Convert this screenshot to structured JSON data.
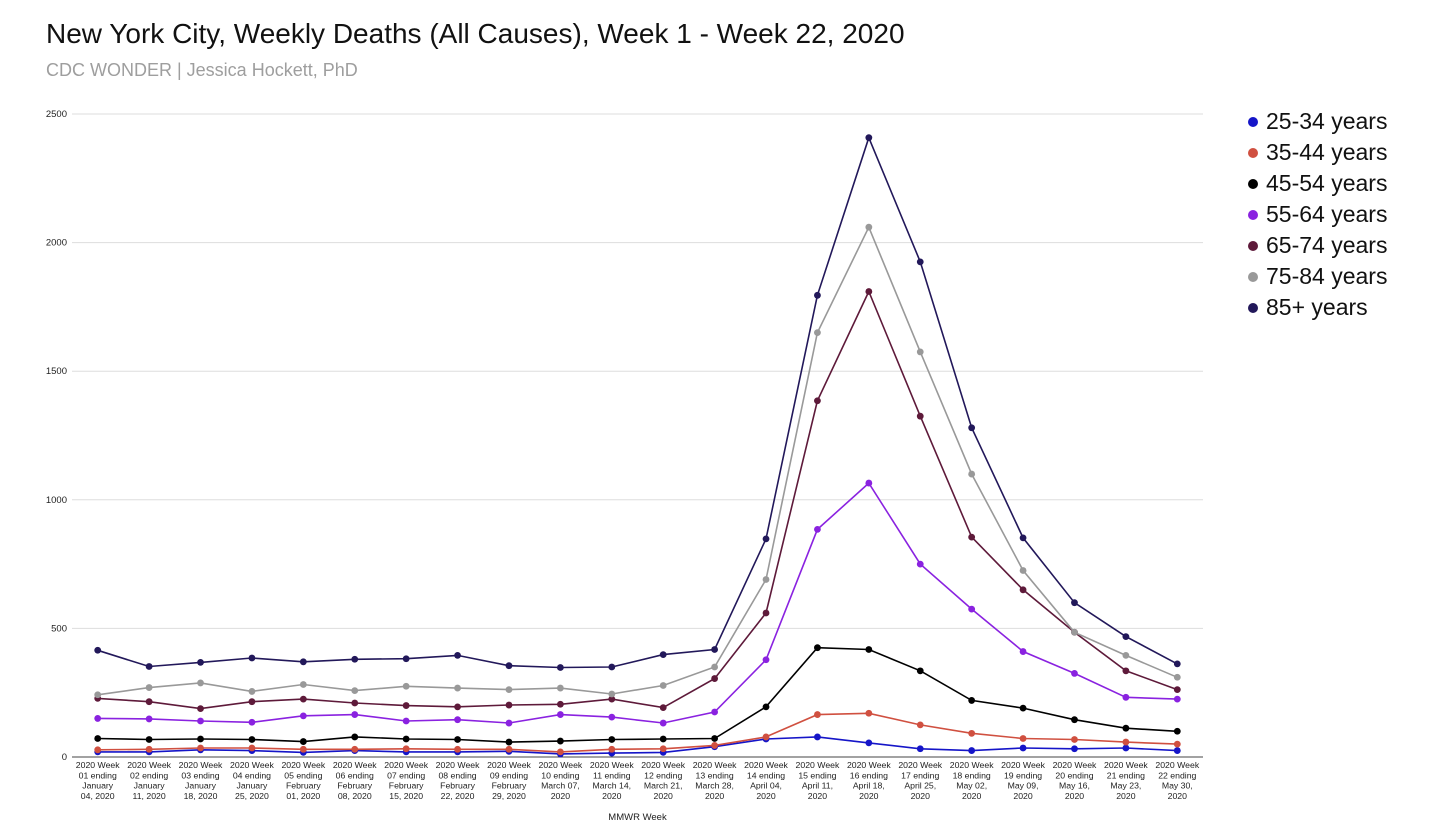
{
  "header": {
    "title": "New York City, Weekly Deaths (All Causes), Week 1 - Week 22, 2020",
    "subtitle": "CDC WONDER | Jessica Hockett, PhD"
  },
  "chart_data": {
    "type": "line",
    "title": "New York City, Weekly Deaths (All Causes), Week 1 - Week 22, 2020",
    "subtitle": "CDC WONDER | Jessica Hockett, PhD",
    "xlabel": "MMWR Week",
    "ylabel": "",
    "ylim": [
      0,
      2500
    ],
    "yticks": [
      0,
      500,
      1000,
      1500,
      2000,
      2500
    ],
    "grid": true,
    "legend_position": "right",
    "categories": [
      [
        "2020 Week",
        "01 ending",
        "January",
        "04, 2020"
      ],
      [
        "2020 Week",
        "02 ending",
        "January",
        "11, 2020"
      ],
      [
        "2020 Week",
        "03 ending",
        "January",
        "18, 2020"
      ],
      [
        "2020 Week",
        "04 ending",
        "January",
        "25, 2020"
      ],
      [
        "2020 Week",
        "05 ending",
        "February",
        "01, 2020"
      ],
      [
        "2020 Week",
        "06 ending",
        "February",
        "08, 2020"
      ],
      [
        "2020 Week",
        "07 ending",
        "February",
        "15, 2020"
      ],
      [
        "2020 Week",
        "08 ending",
        "February",
        "22, 2020"
      ],
      [
        "2020 Week",
        "09 ending",
        "February",
        "29, 2020"
      ],
      [
        "2020 Week",
        "10 ending",
        "March 07,",
        "2020"
      ],
      [
        "2020 Week",
        "11 ending",
        "March 14,",
        "2020"
      ],
      [
        "2020 Week",
        "12 ending",
        "March 21,",
        "2020"
      ],
      [
        "2020 Week",
        "13 ending",
        "March 28,",
        "2020"
      ],
      [
        "2020 Week",
        "14 ending",
        "April 04,",
        "2020"
      ],
      [
        "2020 Week",
        "15 ending",
        "April 11,",
        "2020"
      ],
      [
        "2020 Week",
        "16 ending",
        "April 18,",
        "2020"
      ],
      [
        "2020 Week",
        "17 ending",
        "April 25,",
        "2020"
      ],
      [
        "2020 Week",
        "18 ending",
        "May 02,",
        "2020"
      ],
      [
        "2020 Week",
        "19 ending",
        "May 09,",
        "2020"
      ],
      [
        "2020 Week",
        "20 ending",
        "May 16,",
        "2020"
      ],
      [
        "2020 Week",
        "21 ending",
        "May 23,",
        "2020"
      ],
      [
        "2020 Week",
        "22 ending",
        "May 30,",
        "2020"
      ]
    ],
    "series": [
      {
        "name": "25-34 years",
        "color": "#1515c8",
        "values": [
          20,
          20,
          28,
          25,
          18,
          25,
          20,
          20,
          22,
          12,
          15,
          18,
          40,
          70,
          78,
          55,
          32,
          25,
          35,
          32,
          35,
          25
        ]
      },
      {
        "name": "35-44 years",
        "color": "#d05040",
        "values": [
          28,
          30,
          35,
          35,
          30,
          30,
          32,
          30,
          30,
          20,
          30,
          32,
          45,
          78,
          165,
          170,
          125,
          92,
          72,
          68,
          58,
          50
        ]
      },
      {
        "name": "45-54 years",
        "color": "#000000",
        "values": [
          72,
          68,
          70,
          68,
          60,
          78,
          70,
          68,
          58,
          62,
          68,
          70,
          72,
          195,
          425,
          418,
          335,
          220,
          190,
          145,
          112,
          100
        ]
      },
      {
        "name": "55-64 years",
        "color": "#8a22e0",
        "values": [
          150,
          148,
          140,
          135,
          160,
          165,
          140,
          145,
          132,
          165,
          155,
          132,
          175,
          378,
          885,
          1065,
          750,
          575,
          410,
          325,
          232,
          225
        ]
      },
      {
        "name": "65-74 years",
        "color": "#5e1a3a",
        "values": [
          228,
          215,
          188,
          215,
          225,
          210,
          200,
          195,
          202,
          205,
          225,
          192,
          305,
          560,
          1385,
          1810,
          1325,
          855,
          650,
          485,
          335,
          262
        ]
      },
      {
        "name": "75-84 years",
        "color": "#999999",
        "values": [
          242,
          270,
          288,
          255,
          282,
          258,
          275,
          268,
          262,
          268,
          245,
          278,
          350,
          690,
          1650,
          2060,
          1575,
          1100,
          725,
          485,
          395,
          310
        ]
      },
      {
        "name": "85+ years",
        "color": "#22185a",
        "values": [
          415,
          352,
          368,
          385,
          370,
          380,
          382,
          395,
          355,
          348,
          350,
          398,
          418,
          848,
          1795,
          2408,
          1925,
          1280,
          852,
          600,
          468,
          362
        ]
      }
    ]
  }
}
